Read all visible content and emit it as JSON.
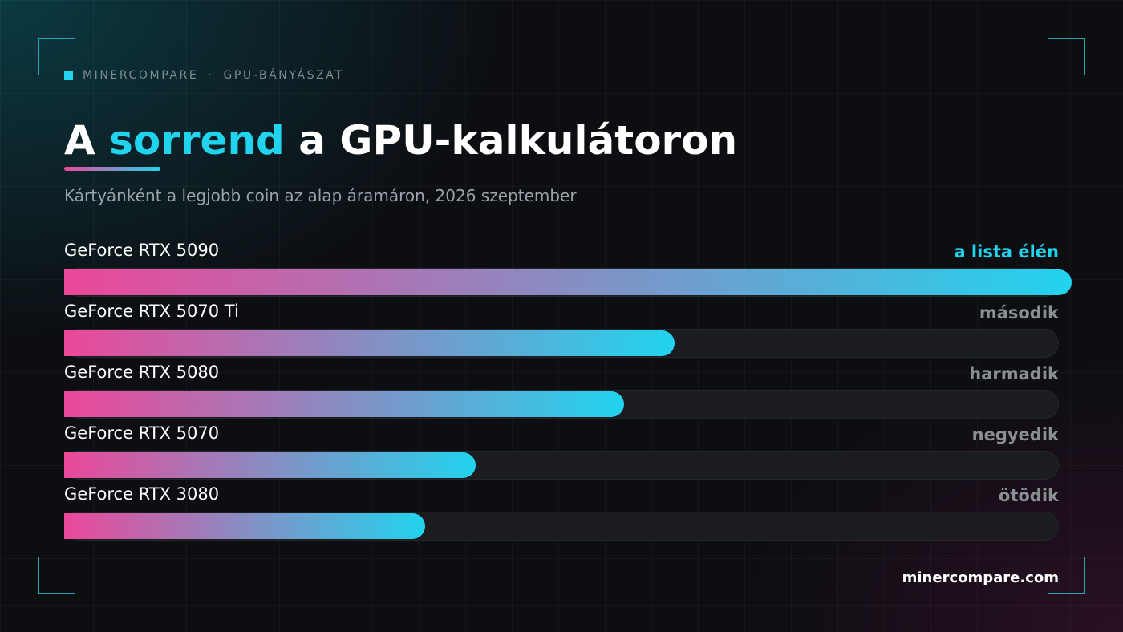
{
  "header": {
    "brand": "MINERCOMPARE",
    "separator": "·",
    "section": "GPU-BÁNYÁSZAT"
  },
  "title": {
    "before": "A ",
    "accent": "sorrend",
    "after": " a GPU-kalkulátoron"
  },
  "subtitle": "Kártyánként a legjobb coin az alap áramáron, 2026 szeptember",
  "footer": {
    "site": "minercompare.com"
  },
  "colors": {
    "accent": "#22d3ee",
    "gradient_start": "#ec4899",
    "gradient_end": "#22d3ee",
    "rank_muted": "#8a8f94"
  },
  "chart_data": {
    "type": "bar",
    "orientation": "horizontal",
    "categories": [
      "GeForce RTX 5090",
      "GeForce RTX 5070 Ti",
      "GeForce RTX 5080",
      "GeForce RTX 5070",
      "GeForce RTX 3080"
    ],
    "values": [
      1.0,
      0.614,
      0.563,
      0.414,
      0.363
    ],
    "value_unit": "fraction of top card",
    "rank_labels": [
      "a lista élén",
      "második",
      "harmadik",
      "negyedik",
      "ötödik"
    ],
    "xlim": [
      0,
      1
    ],
    "grid": false,
    "legend": "none"
  }
}
